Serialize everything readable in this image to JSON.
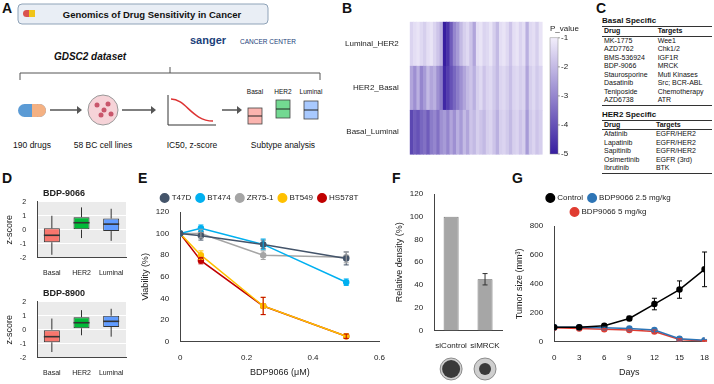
{
  "panel_A": {
    "label": "A",
    "title": "Genomics of Drug Sensitivity in Cancer",
    "logos": [
      "sanger",
      "CANCER CENTER"
    ],
    "dataset": "GDSC2 dataset",
    "steps": [
      "190 drugs",
      "58 BC cell lines",
      "IC50, z-score",
      "Subtype analysis"
    ],
    "subtypes": [
      "Basal",
      "HER2",
      "Luminal"
    ]
  },
  "panel_C": {
    "label": "C",
    "tables": [
      {
        "title": "Basal Specific",
        "header": [
          "Drug",
          "Targets"
        ],
        "rows": [
          [
            "MK-1775",
            "Wee1"
          ],
          [
            "AZD7762",
            "Chk1/2"
          ],
          [
            "BMS-536924",
            "IGF1R"
          ],
          [
            "BDP-9066",
            "MRCK"
          ],
          [
            "Staurosporine",
            "Muti Kinases"
          ],
          [
            "Dasatinib",
            "Src; BCR-ABL"
          ],
          [
            "Teniposide",
            "Chemotherapy"
          ],
          [
            "AZD6738",
            "ATR"
          ]
        ]
      },
      {
        "title": "HER2 Specific",
        "header": [
          "Drug",
          "Targets"
        ],
        "rows": [
          [
            "Afatinib",
            "EGFR/HER2"
          ],
          [
            "Lapatinib",
            "EGFR/HER2"
          ],
          [
            "Sapitinib",
            "EGFR/HER2"
          ],
          [
            "Osimertinib",
            "EGFR (3rd)"
          ],
          [
            "Ibrutinib",
            "BTK"
          ]
        ]
      }
    ]
  },
  "chart_data": [
    {
      "panel": "B",
      "type": "heatmap",
      "rows": [
        "Luminal_HER2",
        "HER2_Basal",
        "Basal_Luminal"
      ],
      "categories": [
        null,
        null,
        null,
        null,
        null,
        null,
        null,
        null,
        null,
        null,
        null,
        null,
        null,
        null,
        null,
        null,
        null,
        null,
        null,
        null,
        null,
        null,
        null,
        null,
        null,
        null,
        null,
        null,
        null,
        null,
        null,
        null,
        null,
        null,
        null,
        null,
        null,
        null,
        null,
        null
      ],
      "cells": [
        [
          -1.5,
          -1.3,
          -1.2,
          -1.4,
          -1.6,
          -1.3,
          -1.2,
          -1.5,
          -1.8,
          -2.2,
          -5,
          -4.6,
          -3.8,
          -3.0,
          -2.6,
          -2.0,
          -1.6,
          -1.4,
          -1.8,
          -2.4,
          -1.3,
          -1.2,
          -1.5,
          -1.4,
          -1.2,
          -1.6,
          -2.0,
          -1.3,
          -1.2,
          -1.4,
          -1.8,
          -1.3,
          -1.2,
          -1.5,
          -1.3,
          -2.2,
          -1.4,
          -1.3,
          -1.6,
          -1.2
        ],
        [
          -2.4,
          -2.8,
          -2.2,
          -3.0,
          -2.6,
          -2.0,
          -2.4,
          -2.2,
          -2.8,
          -3.2,
          -4.8,
          -4.4,
          -4.0,
          -3.6,
          -3.2,
          -2.8,
          -2.4,
          -2.0,
          -1.8,
          -2.2,
          -1.6,
          -1.4,
          -1.8,
          -1.5,
          -1.4,
          -1.7,
          -2.0,
          -1.5,
          -1.4,
          -1.6,
          -1.9,
          -1.5,
          -1.4,
          -1.6,
          -1.5,
          -2.4,
          -1.6,
          -1.4,
          -1.7,
          -1.5
        ],
        [
          -4.2,
          -3.8,
          -4.0,
          -3.6,
          -3.4,
          -3.8,
          -3.2,
          -3.0,
          -3.4,
          -2.8,
          -2.6,
          -3.0,
          -2.4,
          -2.8,
          -2.2,
          -2.6,
          -2.0,
          -2.4,
          -1.8,
          -2.0,
          -1.6,
          -1.8,
          -2.0,
          -1.6,
          -1.5,
          -1.8,
          -2.2,
          -1.6,
          -1.5,
          -1.7,
          -2.0,
          -1.6,
          -1.5,
          -1.8,
          -1.6,
          -2.6,
          -1.7,
          -1.5,
          -1.8,
          -1.6
        ]
      ],
      "colorbar": {
        "title": "P_value",
        "range": [
          -5,
          -1
        ],
        "ticks": [
          -1,
          -2,
          -3,
          -4,
          -5
        ]
      },
      "tick_labels": "y"
    },
    {
      "panel": "D",
      "type": "box",
      "title": "BDP-9066",
      "categories": [
        "Basal",
        "HER2",
        "Luminal"
      ],
      "colors": [
        "#f8766d",
        "#00ba38",
        "#619cff"
      ],
      "y_label": "z-score",
      "ylim": [
        -2,
        2
      ],
      "yticks": [
        -2,
        -1,
        0,
        1,
        2
      ],
      "grid": true,
      "min": [
        -1.8,
        -0.6,
        -0.8
      ],
      "q1": [
        -0.9,
        0.0,
        -0.1
      ],
      "median": [
        -0.4,
        0.5,
        0.4
      ],
      "q3": [
        0.1,
        0.9,
        0.8
      ],
      "max": [
        1.0,
        1.6,
        1.5
      ]
    },
    {
      "type": "box",
      "title": "BDP-8900",
      "categories": [
        "Basal",
        "HER2",
        "Luminal"
      ],
      "colors": [
        "#f8766d",
        "#00ba38",
        "#619cff"
      ],
      "y_label": "z-score",
      "ylim": [
        -2,
        2
      ],
      "yticks": [
        -2,
        -1,
        0,
        1,
        2
      ],
      "grid": true,
      "min": [
        -1.6,
        -0.4,
        -0.5
      ],
      "q1": [
        -0.9,
        0.1,
        0.2
      ],
      "median": [
        -0.5,
        0.5,
        0.6
      ],
      "q3": [
        0.0,
        0.9,
        1.0
      ],
      "max": [
        0.8,
        1.4,
        1.5
      ]
    },
    {
      "panel": "E",
      "type": "line",
      "x": [
        0,
        0.0625,
        0.25,
        0.5
      ],
      "x_label": "BDP9066 (μM)",
      "y_label": "Viability (%)",
      "xlim": [
        0,
        0.6
      ],
      "xticks": [
        0,
        0.2,
        0.4,
        0.6
      ],
      "ylim": [
        0,
        120
      ],
      "yticks": [
        0,
        20,
        40,
        60,
        80,
        100,
        120
      ],
      "legend": "top",
      "marker": "circle",
      "series": [
        {
          "name": "T47D",
          "color": "#44546a",
          "values": [
            100,
            98,
            90,
            77
          ],
          "errors": [
            0,
            4,
            4,
            6
          ]
        },
        {
          "name": "BT474",
          "color": "#00b0f0",
          "values": [
            100,
            105,
            90,
            55
          ],
          "errors": [
            0,
            3,
            5,
            3
          ]
        },
        {
          "name": "ZR75-1",
          "color": "#a5a5a5",
          "values": [
            100,
            100,
            80,
            78
          ],
          "errors": [
            0,
            4,
            4,
            5
          ]
        },
        {
          "name": "BT549",
          "color": "#ffc000",
          "values": [
            100,
            80,
            33,
            5
          ],
          "errors": [
            0,
            4,
            8,
            2
          ]
        },
        {
          "name": "HS578T",
          "color": "#c00000",
          "values": [
            100,
            75,
            33,
            5
          ],
          "errors": [
            0,
            3,
            8,
            2
          ]
        }
      ]
    },
    {
      "panel": "F",
      "type": "bar",
      "categories": [
        "siControl",
        "siMRCK"
      ],
      "values": [
        100,
        45
      ],
      "errors": [
        0,
        5
      ],
      "color": "#a6a6a6",
      "y_label": "Relative density (%)",
      "ylim": [
        0,
        120
      ],
      "yticks": [
        0,
        20,
        40,
        60,
        80,
        100,
        120
      ]
    },
    {
      "panel": "G",
      "type": "line",
      "x": [
        0,
        3,
        6,
        9,
        12,
        15,
        18
      ],
      "x_label": "Days",
      "y_label": "Tumor size (mm³)",
      "xlim": [
        0,
        18
      ],
      "xticks": [
        0,
        3,
        6,
        9,
        12,
        15,
        18
      ],
      "ylim": [
        0,
        800
      ],
      "yticks": [
        0,
        200,
        400,
        600,
        800
      ],
      "legend": "top",
      "marker": "circle",
      "series": [
        {
          "name": "Control",
          "color": "#000000",
          "values": [
            100,
            100,
            110,
            160,
            260,
            360,
            500
          ],
          "errors": [
            0,
            0,
            5,
            15,
            40,
            60,
            120
          ]
        },
        {
          "name": "BDP9066 2.5 mg/kg",
          "color": "#2e75b6",
          "values": [
            100,
            100,
            95,
            90,
            80,
            20,
            10
          ],
          "errors": [
            0,
            0,
            5,
            5,
            10,
            5,
            5
          ]
        },
        {
          "name": "BDP9066 5 mg/kg",
          "color": "#e03c31",
          "values": [
            95,
            90,
            85,
            80,
            70,
            15,
            5
          ],
          "errors": [
            0,
            0,
            5,
            5,
            10,
            5,
            3
          ]
        }
      ]
    }
  ]
}
